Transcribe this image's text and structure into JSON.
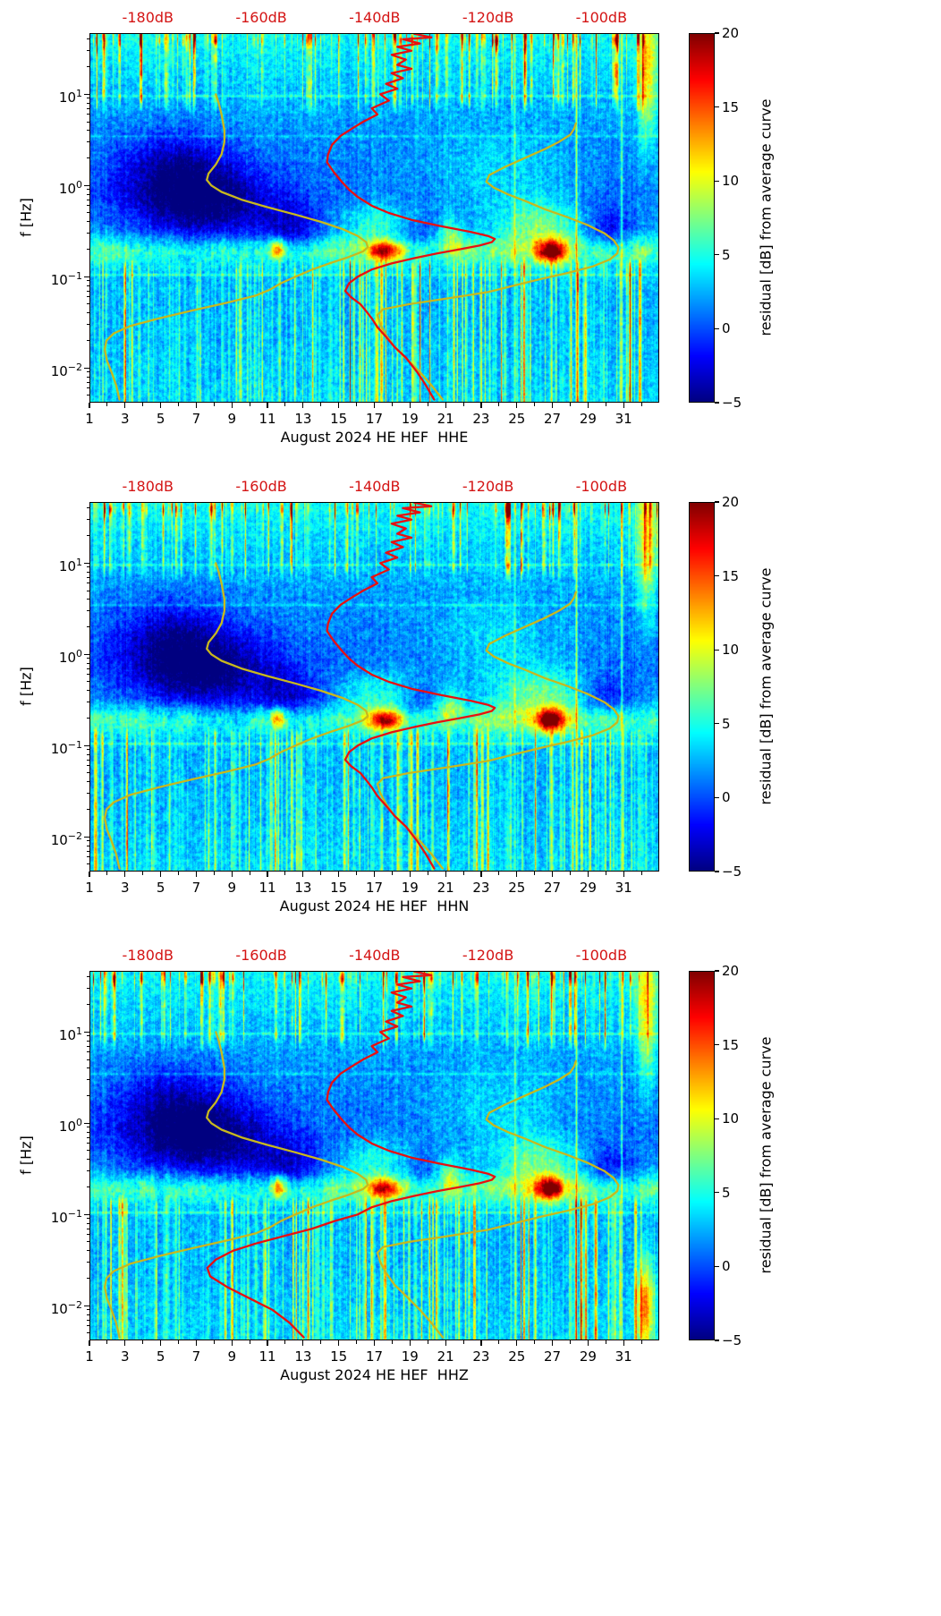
{
  "chart_data": {
    "type": "heatmap",
    "description": "Three stacked day-frequency spectrograms of power residuals from the station average spectral curve for August 2024, station HE.HEF, components HHE, HHN, HHZ, jet colormap, with station average spectrum (red) and reference noise model curves (yellow) overlaid against the top dB axis.",
    "panels": [
      {
        "xlabel": "August 2024 HE HEF  HHE",
        "seed": 17,
        "stripe_gain": 1.0,
        "extra_blobs": []
      },
      {
        "xlabel": "August 2024 HE HEF  HHN",
        "seed": 42,
        "stripe_gain": 1.0,
        "extra_blobs": []
      },
      {
        "xlabel": "August 2024 HE HEF  HHZ",
        "seed": 73,
        "stripe_gain": 1.1,
        "extra_blobs": [
          {
            "d": 32.2,
            "lf": -2.0,
            "a": 11.0,
            "dw": 0.5,
            "fw": 0.5
          }
        ]
      }
    ],
    "x_axis": {
      "unit": "day of month",
      "range": [
        1,
        33
      ],
      "major_ticks": [
        1,
        3,
        5,
        7,
        9,
        11,
        13,
        15,
        17,
        19,
        21,
        23,
        25,
        27,
        29,
        31
      ],
      "minor_ticks": [
        2,
        4,
        6,
        8,
        10,
        12,
        14,
        16,
        18,
        20,
        22,
        24,
        26,
        28,
        30,
        32
      ]
    },
    "y_axis": {
      "label": "f [Hz]",
      "scale": "log",
      "range_log10": [
        -2.38,
        1.67
      ],
      "major_tick_exponents": [
        1,
        0,
        -1,
        -2
      ]
    },
    "top_axis": {
      "color": "#d41414",
      "labels": [
        "-180dB",
        "-160dB",
        "-140dB",
        "-120dB",
        "-100dB"
      ],
      "values_db": [
        -180,
        -160,
        -140,
        -120,
        -100
      ],
      "range_db": [
        -190.3,
        -89.8
      ]
    },
    "colorbar": {
      "label": "residual [dB] from average curve",
      "colormap": "jet",
      "vmin": -5,
      "vmax": 20,
      "tick_values": [
        20,
        15,
        10,
        5,
        0,
        -5
      ],
      "tick_labels": [
        "20",
        "15",
        "10",
        "5",
        "0",
        "−5"
      ]
    },
    "curves": {
      "station_average_spectrum": {
        "color": "#e81010",
        "width": 2.3,
        "points_hz_db": [
          [
            46,
            -133
          ],
          [
            42,
            -130
          ],
          [
            40,
            -135
          ],
          [
            36,
            -132
          ],
          [
            33,
            -136
          ],
          [
            30,
            -133.5
          ],
          [
            27,
            -137
          ],
          [
            24,
            -134.5
          ],
          [
            21,
            -136
          ],
          [
            19,
            -133.5
          ],
          [
            17,
            -137
          ],
          [
            15,
            -135
          ],
          [
            13,
            -138
          ],
          [
            11.5,
            -136
          ],
          [
            10,
            -139
          ],
          [
            8.5,
            -137.5
          ],
          [
            7,
            -140.5
          ],
          [
            6,
            -139.5
          ],
          [
            5,
            -142
          ],
          [
            4.2,
            -144
          ],
          [
            3.5,
            -146
          ],
          [
            2.8,
            -147.5
          ],
          [
            2.2,
            -148.2
          ],
          [
            1.8,
            -148.4
          ],
          [
            1.4,
            -147.2
          ],
          [
            1.1,
            -145.8
          ],
          [
            0.9,
            -144.5
          ],
          [
            0.75,
            -143
          ],
          [
            0.6,
            -140.5
          ],
          [
            0.5,
            -137.5
          ],
          [
            0.42,
            -133.5
          ],
          [
            0.36,
            -128.5
          ],
          [
            0.31,
            -123
          ],
          [
            0.28,
            -120
          ],
          [
            0.26,
            -118.8
          ],
          [
            0.24,
            -119.3
          ],
          [
            0.22,
            -121.5
          ],
          [
            0.2,
            -125
          ],
          [
            0.18,
            -129
          ],
          [
            0.16,
            -133
          ],
          [
            0.14,
            -137
          ],
          [
            0.12,
            -140.5
          ],
          [
            0.1,
            -143
          ],
          [
            0.085,
            -144.5
          ],
          [
            0.07,
            -145.2
          ],
          [
            0.06,
            -144.2
          ],
          [
            0.05,
            -142.5
          ],
          [
            0.042,
            -141.5
          ],
          [
            0.035,
            -140.5
          ],
          [
            0.028,
            -139.5
          ],
          [
            0.022,
            -138
          ],
          [
            0.017,
            -136.5
          ],
          [
            0.013,
            -134.5
          ],
          [
            0.009,
            -132.5
          ],
          [
            0.0065,
            -131
          ],
          [
            0.0045,
            -129.5
          ]
        ]
      },
      "station_average_lowfreq_hhz": {
        "color": "#e81010",
        "width": 2.3,
        "points_hz_db": [
          [
            0.085,
            -147
          ],
          [
            0.07,
            -151
          ],
          [
            0.058,
            -156
          ],
          [
            0.048,
            -161
          ],
          [
            0.04,
            -165
          ],
          [
            0.032,
            -168
          ],
          [
            0.026,
            -169.5
          ],
          [
            0.021,
            -169
          ],
          [
            0.016,
            -166
          ],
          [
            0.012,
            -162
          ],
          [
            0.009,
            -158
          ],
          [
            0.0065,
            -155
          ],
          [
            0.0045,
            -152.5
          ]
        ]
      },
      "low_noise_reference": {
        "color": "#c8b81e",
        "width": 2.3,
        "points_hz_db": [
          [
            10,
            -168
          ],
          [
            8,
            -167.5
          ],
          [
            6,
            -167
          ],
          [
            4,
            -166.5
          ],
          [
            3,
            -166.5
          ],
          [
            2.2,
            -167
          ],
          [
            1.7,
            -168
          ],
          [
            1.35,
            -169.3
          ],
          [
            1.15,
            -169.6
          ],
          [
            1.0,
            -168.8
          ],
          [
            0.85,
            -167
          ],
          [
            0.7,
            -163.5
          ],
          [
            0.58,
            -159
          ],
          [
            0.48,
            -154
          ],
          [
            0.4,
            -149.5
          ],
          [
            0.33,
            -145.5
          ],
          [
            0.28,
            -143
          ],
          [
            0.24,
            -141.5
          ],
          [
            0.21,
            -141.2
          ],
          [
            0.19,
            -142
          ],
          [
            0.165,
            -144.5
          ],
          [
            0.14,
            -148
          ],
          [
            0.12,
            -151
          ],
          [
            0.1,
            -154
          ],
          [
            0.085,
            -156.5
          ],
          [
            0.072,
            -158.5
          ],
          [
            0.062,
            -161
          ],
          [
            0.052,
            -166
          ],
          [
            0.043,
            -172
          ],
          [
            0.035,
            -178
          ],
          [
            0.029,
            -183
          ],
          [
            0.024,
            -186
          ],
          [
            0.02,
            -187.3
          ],
          [
            0.016,
            -187.6
          ],
          [
            0.012,
            -187.2
          ],
          [
            0.009,
            -186.4
          ],
          [
            0.0065,
            -185.6
          ],
          [
            0.0045,
            -185
          ]
        ]
      },
      "high_noise_reference": {
        "color": "#c8b81e",
        "width": 2.3,
        "points_hz_db": [
          [
            4.8,
            -104.5
          ],
          [
            4.2,
            -104.8
          ],
          [
            3.6,
            -105.5
          ],
          [
            3.0,
            -107.5
          ],
          [
            2.5,
            -110
          ],
          [
            2.0,
            -113.5
          ],
          [
            1.6,
            -117
          ],
          [
            1.3,
            -119.8
          ],
          [
            1.1,
            -120.3
          ],
          [
            0.95,
            -119
          ],
          [
            0.8,
            -116.5
          ],
          [
            0.68,
            -113.5
          ],
          [
            0.55,
            -110
          ],
          [
            0.45,
            -106
          ],
          [
            0.37,
            -102.5
          ],
          [
            0.3,
            -99.5
          ],
          [
            0.25,
            -97.8
          ],
          [
            0.21,
            -97
          ],
          [
            0.18,
            -97.2
          ],
          [
            0.155,
            -98.5
          ],
          [
            0.13,
            -101.5
          ],
          [
            0.11,
            -106
          ],
          [
            0.095,
            -110.5
          ],
          [
            0.08,
            -115.5
          ],
          [
            0.068,
            -120
          ],
          [
            0.058,
            -127
          ],
          [
            0.05,
            -134
          ],
          [
            0.044,
            -138.5
          ],
          [
            0.038,
            -139.5
          ],
          [
            0.03,
            -139
          ],
          [
            0.023,
            -138
          ],
          [
            0.017,
            -136.5
          ],
          [
            0.012,
            -134
          ],
          [
            0.009,
            -132
          ],
          [
            0.0065,
            -130
          ],
          [
            0.0045,
            -128
          ]
        ]
      }
    },
    "features": {
      "base_profile": [
        [
          1.67,
          4.5
        ],
        [
          1.45,
          4.0
        ],
        [
          1.2,
          3.2
        ],
        [
          0.95,
          2.6
        ],
        [
          0.6,
          1.8
        ],
        [
          0.2,
          1.2
        ],
        [
          -0.1,
          0.8
        ],
        [
          -0.45,
          1.8
        ],
        [
          -0.72,
          3.0
        ],
        [
          -1.0,
          2.6
        ],
        [
          -1.3,
          2.4
        ],
        [
          -1.7,
          2.6
        ],
        [
          -2.0,
          2.9
        ],
        [
          -2.38,
          3.2
        ]
      ],
      "low_stripe_envelope": [
        {
          "d0": 1.2,
          "d1": 3.6,
          "g": 1.0
        },
        {
          "d0": 3.6,
          "d1": 8.6,
          "g": 0.45
        },
        {
          "d0": 8.6,
          "d1": 13.6,
          "g": 0.8
        },
        {
          "d0": 13.6,
          "d1": 15.0,
          "g": 0.45
        },
        {
          "d0": 15.0,
          "d1": 24.4,
          "g": 1.0
        },
        {
          "d0": 24.4,
          "d1": 25.2,
          "g": 0.5
        },
        {
          "d0": 25.2,
          "d1": 29.6,
          "g": 1.1
        },
        {
          "d0": 29.6,
          "d1": 31.2,
          "g": 0.65
        },
        {
          "d0": 31.2,
          "d1": 33.0,
          "g": 0.85
        }
      ],
      "high_stripe_envelope": [
        {
          "d0": 4.0,
          "d1": 8.6,
          "g": 0.7
        },
        {
          "d0": 25.2,
          "d1": 29.6,
          "g": 1.15
        }
      ],
      "microseism_band": {
        "center_log10f": -0.72,
        "width_log10": 0.16,
        "base_amp": 2.2
      },
      "blobs": [
        {
          "d": 7.2,
          "lf": -0.18,
          "a": -7.0,
          "dw": 4.0,
          "fw": 0.45
        },
        {
          "d": 5.5,
          "lf": 0.25,
          "a": -3.5,
          "dw": 3.0,
          "fw": 0.4
        },
        {
          "d": 12.4,
          "lf": -0.5,
          "a": -4.5,
          "dw": 2.2,
          "fw": 0.3
        },
        {
          "d": 19.8,
          "lf": -0.52,
          "a": -4.0,
          "dw": 2.0,
          "fw": 0.24
        },
        {
          "d": 30.2,
          "lf": -0.5,
          "a": -4.0,
          "dw": 1.3,
          "fw": 0.26
        },
        {
          "d": 11.6,
          "lf": -0.7,
          "a": 10.0,
          "dw": 0.45,
          "fw": 0.11
        },
        {
          "d": 17.6,
          "lf": -0.72,
          "a": 13.0,
          "dw": 0.9,
          "fw": 0.11
        },
        {
          "d": 26.9,
          "lf": -0.72,
          "a": 15.0,
          "dw": 0.75,
          "fw": 0.12
        },
        {
          "d": 21.2,
          "lf": -0.55,
          "a": 6.0,
          "dw": 0.8,
          "fw": 0.2
        },
        {
          "d": 17.5,
          "lf": -0.42,
          "a": 4.0,
          "dw": 2.6,
          "fw": 0.24
        },
        {
          "d": 26.3,
          "lf": -0.45,
          "a": 5.0,
          "dw": 2.3,
          "fw": 0.32
        },
        {
          "d": 24.0,
          "lf": 0.1,
          "a": 2.5,
          "dw": 4.0,
          "fw": 0.5
        },
        {
          "d": 32.3,
          "lf": 1.25,
          "a": 8.0,
          "dw": 0.55,
          "fw": 0.8
        }
      ],
      "vertical_lines": [
        {
          "d": 28.35,
          "a": 7
        },
        {
          "d": 24.9,
          "a": 4
        },
        {
          "d": 30.9,
          "a": 5
        }
      ],
      "horizontal_lines": [
        {
          "lf": 0.98,
          "a": 2.2
        },
        {
          "lf": 0.54,
          "a": 1.8
        },
        {
          "lf": -0.98,
          "a": 2.6
        }
      ]
    }
  }
}
